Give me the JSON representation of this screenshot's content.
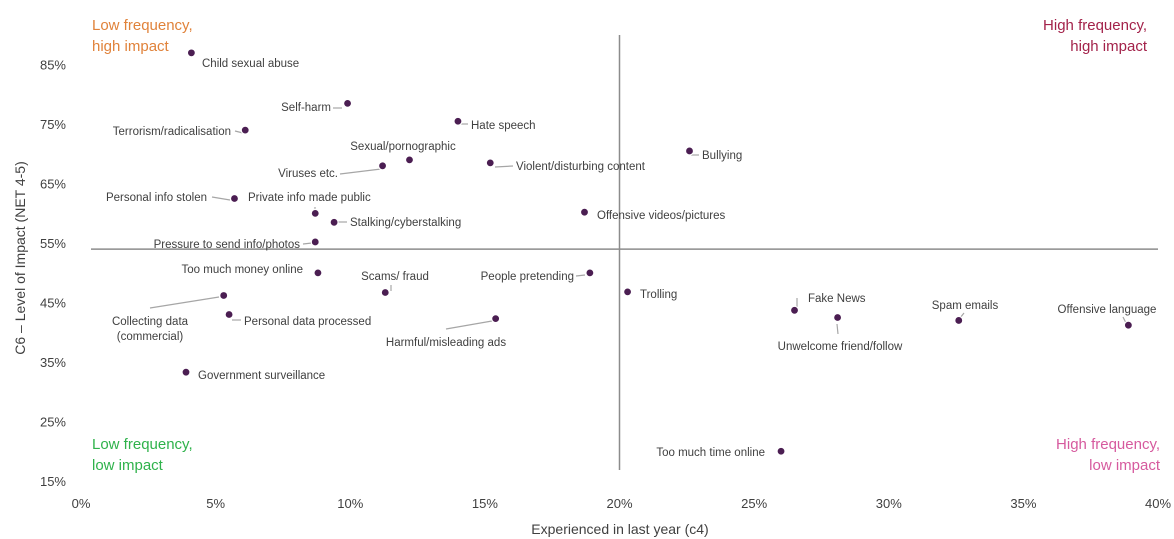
{
  "chart_data": {
    "type": "scatter",
    "xlabel": "Experienced in last year (c4)",
    "ylabel": "C6 – Level of Impact (NET 4-5)",
    "xlim": [
      0,
      40
    ],
    "ylim": [
      15,
      90
    ],
    "x_ticks": [
      "0%",
      "5%",
      "10%",
      "15%",
      "20%",
      "25%",
      "30%",
      "35%",
      "40%"
    ],
    "y_ticks": [
      "15%",
      "25%",
      "35%",
      "45%",
      "55%",
      "65%",
      "75%",
      "85%"
    ],
    "quadrant_divider": {
      "x": 20,
      "y": 54
    },
    "quadrants": [
      {
        "lines": [
          "Low frequency,",
          "high impact"
        ],
        "color": "#e0823a"
      },
      {
        "lines": [
          "High frequency,",
          "high impact"
        ],
        "color": "#a3224a"
      },
      {
        "lines": [
          "Low frequency,",
          "low impact"
        ],
        "color": "#2fb24b"
      },
      {
        "lines": [
          "High frequency,",
          "low impact"
        ],
        "color": "#d65a9e"
      }
    ],
    "marker_color": "#4b1e52",
    "points": [
      {
        "label": "Child sexual abuse",
        "x": 4.1,
        "y": 87
      },
      {
        "label": "Self-harm",
        "x": 9.9,
        "y": 78.5
      },
      {
        "label": "Hate speech",
        "x": 14.0,
        "y": 75.5
      },
      {
        "label": "Terrorism/radicalisation",
        "x": 6.1,
        "y": 74
      },
      {
        "label": "Sexual/pornographic",
        "x": 12.2,
        "y": 69
      },
      {
        "label": "Viruses etc.",
        "x": 11.2,
        "y": 68
      },
      {
        "label": "Violent/disturbing content",
        "x": 15.2,
        "y": 68.5
      },
      {
        "label": "Bullying",
        "x": 22.6,
        "y": 70.5
      },
      {
        "label": "Personal info stolen",
        "x": 5.7,
        "y": 62.5
      },
      {
        "label": "Private info made public",
        "x": 8.7,
        "y": 60
      },
      {
        "label": "Stalking/cyberstalking",
        "x": 9.4,
        "y": 58.5
      },
      {
        "label": "Offensive videos/pictures",
        "x": 18.7,
        "y": 60.2
      },
      {
        "label": "Pressure to send info/photos",
        "x": 8.7,
        "y": 55.2
      },
      {
        "label": "Too much money online",
        "x": 8.8,
        "y": 50
      },
      {
        "label": "Scams/ fraud",
        "x": 11.3,
        "y": 46.7
      },
      {
        "label": "People pretending",
        "x": 18.9,
        "y": 50
      },
      {
        "label": "Trolling",
        "x": 20.3,
        "y": 46.8
      },
      {
        "label": "Collecting data\n(commercial)",
        "x": 5.3,
        "y": 46.2
      },
      {
        "label": "Personal data processed",
        "x": 5.5,
        "y": 43
      },
      {
        "label": "Harmful/misleading ads",
        "x": 15.4,
        "y": 42.3
      },
      {
        "label": "Fake News",
        "x": 26.5,
        "y": 43.7
      },
      {
        "label": "Unwelcome friend/follow",
        "x": 28.1,
        "y": 42.5
      },
      {
        "label": "Spam emails",
        "x": 32.6,
        "y": 42
      },
      {
        "label": "Offensive language",
        "x": 38.9,
        "y": 41.2
      },
      {
        "label": "Government surveillance",
        "x": 3.9,
        "y": 33.3
      },
      {
        "label": "Too much time online",
        "x": 26.0,
        "y": 20
      }
    ]
  }
}
